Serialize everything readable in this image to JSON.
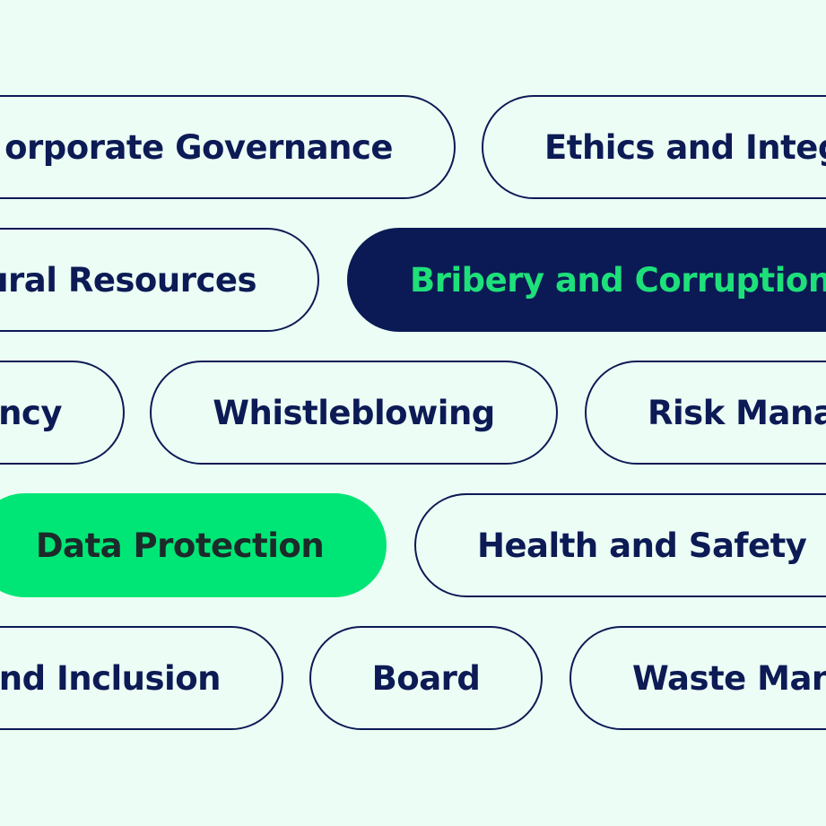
{
  "colors": {
    "background": "#ecfdf5",
    "navy": "#0c1a55",
    "accent_green": "#00e676",
    "green_text": "#1ee07a"
  },
  "tags": {
    "corporate_governance": "orporate Governance",
    "ethics_and_integrity": "Ethics and Integ",
    "natural_resources": "ural Resources",
    "bribery_and_corruption": "Bribery and Corruption",
    "transparency": "ncy",
    "whistleblowing": "Whistleblowing",
    "risk_management": "Risk Mana",
    "data_protection": "Data Protection",
    "health_and_safety": "Health and Safety",
    "diversity_and_inclusion": "nd Inclusion",
    "board": "Board",
    "waste_management": "Waste Man"
  }
}
